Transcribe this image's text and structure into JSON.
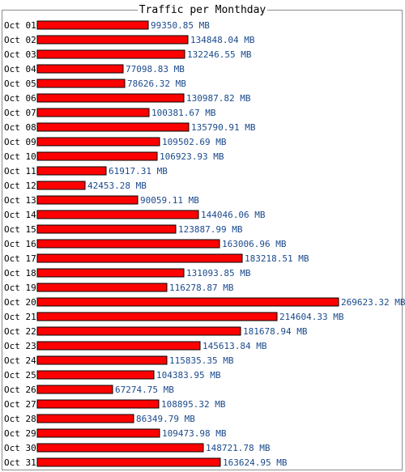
{
  "chart_data": {
    "type": "bar",
    "orientation": "horizontal",
    "title": "Traffic per Monthday",
    "unit": "MB",
    "bar_color": "#ff0000",
    "bar_border_color": "#000000",
    "value_label_color": "#1a4a8c",
    "categories": [
      "Oct 01",
      "Oct 02",
      "Oct 03",
      "Oct 04",
      "Oct 05",
      "Oct 06",
      "Oct 07",
      "Oct 08",
      "Oct 09",
      "Oct 10",
      "Oct 11",
      "Oct 12",
      "Oct 13",
      "Oct 14",
      "Oct 15",
      "Oct 16",
      "Oct 17",
      "Oct 18",
      "Oct 19",
      "Oct 20",
      "Oct 21",
      "Oct 22",
      "Oct 23",
      "Oct 24",
      "Oct 25",
      "Oct 26",
      "Oct 27",
      "Oct 28",
      "Oct 29",
      "Oct 30",
      "Oct 31"
    ],
    "values": [
      99350.85,
      134848.04,
      132246.55,
      77098.83,
      78626.32,
      130987.82,
      100381.67,
      135790.91,
      109502.69,
      106923.93,
      61917.31,
      42453.28,
      90059.11,
      144046.06,
      123887.99,
      163006.96,
      183218.51,
      131093.85,
      116278.87,
      269623.32,
      214604.33,
      181678.94,
      145613.84,
      115835.35,
      104383.95,
      67274.75,
      108895.32,
      86349.79,
      109473.98,
      148721.78,
      163624.95
    ],
    "value_labels": [
      "99350.85 MB",
      "134848.04 MB",
      "132246.55 MB",
      "77098.83 MB",
      "78626.32 MB",
      "130987.82 MB",
      "100381.67 MB",
      "135790.91 MB",
      "109502.69 MB",
      "106923.93 MB",
      "61917.31 MB",
      "42453.28 MB",
      "90059.11 MB",
      "144046.06 MB",
      "123887.99 MB",
      "163006.96 MB",
      "183218.51 MB",
      "131093.85 MB",
      "116278.87 MB",
      "269623.32 MB",
      "214604.33 MB",
      "181678.94 MB",
      "145613.84 MB",
      "115835.35 MB",
      "104383.95 MB",
      "67274.75 MB",
      "108895.32 MB",
      "86349.79 MB",
      "109473.98 MB",
      "148721.78 MB",
      "163624.95 MB"
    ]
  }
}
